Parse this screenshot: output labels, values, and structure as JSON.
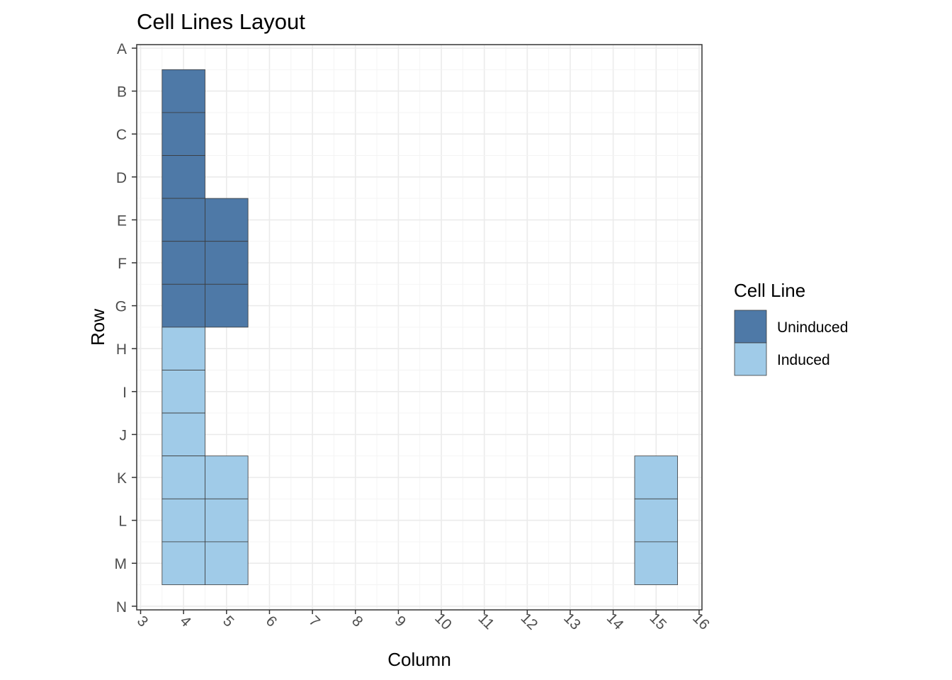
{
  "chart_data": {
    "type": "heatmap",
    "title": "Cell Lines Layout",
    "xlabel": "Column",
    "ylabel": "Row",
    "x_ticks": [
      "3",
      "4",
      "5",
      "6",
      "7",
      "8",
      "9",
      "10",
      "11",
      "12",
      "13",
      "14",
      "15",
      "16"
    ],
    "y_ticks": [
      "A",
      "B",
      "C",
      "D",
      "E",
      "F",
      "G",
      "H",
      "I",
      "J",
      "K",
      "L",
      "M",
      "N"
    ],
    "xlim": [
      3,
      16
    ],
    "ylim_top_to_bottom": [
      "A",
      "N"
    ],
    "grid": true,
    "legend": {
      "title": "Cell Line",
      "placement": "right",
      "entries": [
        {
          "name": "Uninduced",
          "color": "#4e79a7"
        },
        {
          "name": "Induced",
          "color": "#a0cbe8"
        }
      ]
    },
    "series": [
      {
        "name": "Uninduced",
        "color": "#4e79a7",
        "cells": [
          {
            "col": 4,
            "row": "B"
          },
          {
            "col": 4,
            "row": "C"
          },
          {
            "col": 4,
            "row": "D"
          },
          {
            "col": 4,
            "row": "E"
          },
          {
            "col": 4,
            "row": "F"
          },
          {
            "col": 4,
            "row": "G"
          },
          {
            "col": 5,
            "row": "E"
          },
          {
            "col": 5,
            "row": "F"
          },
          {
            "col": 5,
            "row": "G"
          }
        ]
      },
      {
        "name": "Induced",
        "color": "#a0cbe8",
        "cells": [
          {
            "col": 4,
            "row": "H"
          },
          {
            "col": 4,
            "row": "I"
          },
          {
            "col": 4,
            "row": "J"
          },
          {
            "col": 4,
            "row": "K"
          },
          {
            "col": 4,
            "row": "L"
          },
          {
            "col": 4,
            "row": "M"
          },
          {
            "col": 5,
            "row": "K"
          },
          {
            "col": 5,
            "row": "L"
          },
          {
            "col": 5,
            "row": "M"
          },
          {
            "col": 15,
            "row": "K"
          },
          {
            "col": 15,
            "row": "L"
          },
          {
            "col": 15,
            "row": "M"
          }
        ]
      }
    ]
  }
}
